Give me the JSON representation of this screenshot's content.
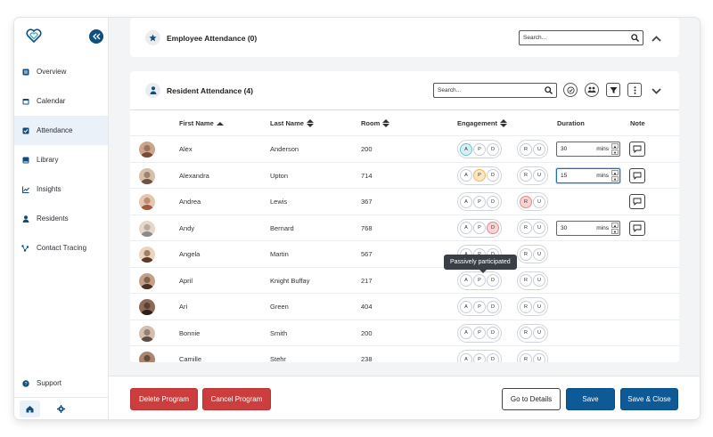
{
  "sidebar": {
    "items": [
      {
        "label": "Overview",
        "icon": "overview-icon"
      },
      {
        "label": "Calendar",
        "icon": "calendar-icon"
      },
      {
        "label": "Attendance",
        "icon": "attendance-icon",
        "active": true
      },
      {
        "label": "Library",
        "icon": "library-icon"
      },
      {
        "label": "Insights",
        "icon": "insights-icon"
      },
      {
        "label": "Residents",
        "icon": "residents-icon"
      },
      {
        "label": "Contact Tracing",
        "icon": "contact-tracing-icon"
      }
    ],
    "support_label": "Support"
  },
  "employee": {
    "title": "Employee Attendance (0)",
    "search_placeholder": "Search..."
  },
  "resident": {
    "title": "Resident Attendance (4)",
    "search_placeholder": "Search...",
    "columns": {
      "first_name": "First Name",
      "last_name": "Last Name",
      "room": "Room",
      "engagement": "Engagement",
      "duration": "Duration",
      "note": "Note"
    },
    "chip_labels": {
      "a": "A",
      "p": "P",
      "d": "D",
      "r": "R",
      "u": "U"
    },
    "rows": [
      {
        "first": "Alex",
        "last": "Anderson",
        "room": "200",
        "selected": "A",
        "duration": "30",
        "unit": "mins",
        "note": true
      },
      {
        "first": "Alexandra",
        "last": "Upton",
        "room": "714",
        "selected": "P",
        "duration": "15",
        "unit": "mins",
        "note": true,
        "focused": true
      },
      {
        "first": "Andrea",
        "last": "Lewis",
        "room": "367",
        "selected": "R",
        "note": true
      },
      {
        "first": "Andy",
        "last": "Bernard",
        "room": "768",
        "selected": "D",
        "duration": "30",
        "unit": "mins",
        "note": true
      },
      {
        "first": "Angela",
        "last": "Martin",
        "room": "567"
      },
      {
        "first": "April",
        "last": "Knight Buffay",
        "room": "217"
      },
      {
        "first": "Ari",
        "last": "Green",
        "room": "404"
      },
      {
        "first": "Bonnie",
        "last": "Smith",
        "room": "200"
      },
      {
        "first": "Camille",
        "last": "Stehr",
        "room": "238"
      }
    ],
    "tooltip": "Passively participated"
  },
  "footer": {
    "delete": "Delete Program",
    "cancel": "Cancel Program",
    "details": "Go to Details",
    "save": "Save",
    "save_close": "Save & Close"
  },
  "colors": {
    "brand": "#0e4f80",
    "primary_button": "#0e5a96",
    "danger_button": "#cc3e3e",
    "chip_absent": "#d6f0f4",
    "chip_passive": "#fde7c0",
    "chip_declined": "#fad4d4"
  }
}
